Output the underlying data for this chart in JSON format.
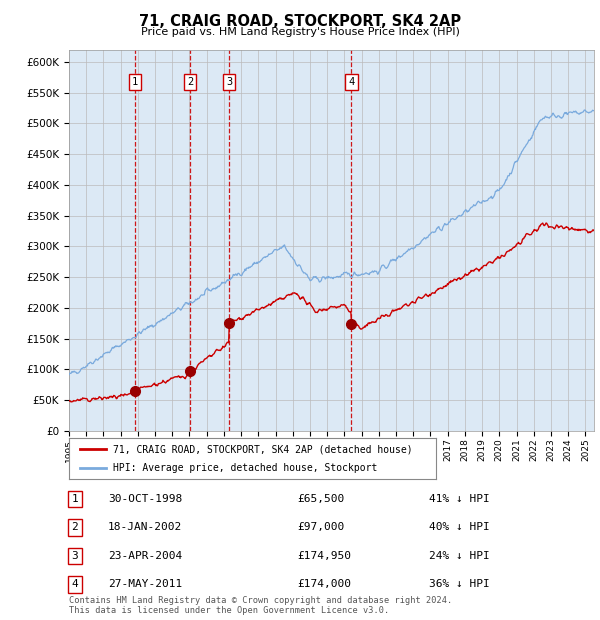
{
  "title": "71, CRAIG ROAD, STOCKPORT, SK4 2AP",
  "subtitle": "Price paid vs. HM Land Registry's House Price Index (HPI)",
  "background_color": "#ffffff",
  "chart_bg_color": "#dce9f5",
  "grid_color": "#bbbbbb",
  "hpi_color": "#7aaadd",
  "price_color": "#cc0000",
  "sale_marker_color": "#990000",
  "vline_color": "#cc0000",
  "ylim": [
    0,
    620000
  ],
  "yticks": [
    0,
    50000,
    100000,
    150000,
    200000,
    250000,
    300000,
    350000,
    400000,
    450000,
    500000,
    550000,
    600000
  ],
  "ytick_labels": [
    "£0",
    "£50K",
    "£100K",
    "£150K",
    "£200K",
    "£250K",
    "£300K",
    "£350K",
    "£400K",
    "£450K",
    "£500K",
    "£550K",
    "£600K"
  ],
  "sale_dates": [
    1998.83,
    2002.05,
    2004.31,
    2011.41
  ],
  "sale_prices": [
    65500,
    97000,
    174950,
    174000
  ],
  "sale_labels": [
    "1",
    "2",
    "3",
    "4"
  ],
  "legend_line1": "71, CRAIG ROAD, STOCKPORT, SK4 2AP (detached house)",
  "legend_line2": "HPI: Average price, detached house, Stockport",
  "table_data": [
    [
      "1",
      "30-OCT-1998",
      "£65,500",
      "41% ↓ HPI"
    ],
    [
      "2",
      "18-JAN-2002",
      "£97,000",
      "40% ↓ HPI"
    ],
    [
      "3",
      "23-APR-2004",
      "£174,950",
      "24% ↓ HPI"
    ],
    [
      "4",
      "27-MAY-2011",
      "£174,000",
      "36% ↓ HPI"
    ]
  ],
  "footnote": "Contains HM Land Registry data © Crown copyright and database right 2024.\nThis data is licensed under the Open Government Licence v3.0.",
  "xmin": 1995,
  "xmax": 2025.5
}
